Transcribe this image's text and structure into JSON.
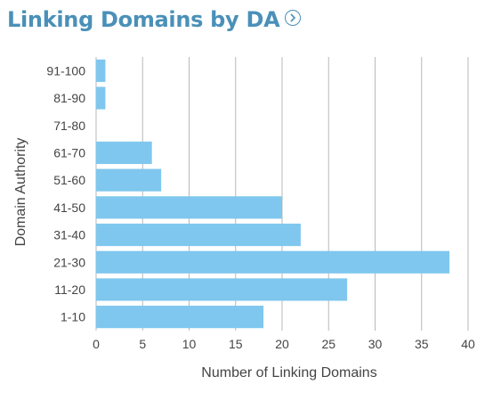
{
  "header": {
    "title": "Linking Domains by DA",
    "info_icon": "chevron-right-circle-icon"
  },
  "colors": {
    "title": "#4a90b8",
    "bar": "#7fc7ee",
    "grid": "#b8b8b8",
    "axis_text": "#444444"
  },
  "chart_data": {
    "type": "bar",
    "orientation": "horizontal",
    "title": "Linking Domains by DA",
    "xlabel": "Number of Linking Domains",
    "ylabel": "Domain Authority",
    "categories": [
      "1-10",
      "11-20",
      "21-30",
      "31-40",
      "41-50",
      "51-60",
      "61-70",
      "71-80",
      "81-90",
      "91-100"
    ],
    "values": [
      18,
      27,
      38,
      22,
      20,
      7,
      6,
      0,
      1,
      1
    ],
    "xlim": [
      0,
      40
    ],
    "xticks": [
      0,
      5,
      10,
      15,
      20,
      25,
      30,
      35,
      40
    ],
    "grid": "vertical",
    "legend": "none"
  }
}
